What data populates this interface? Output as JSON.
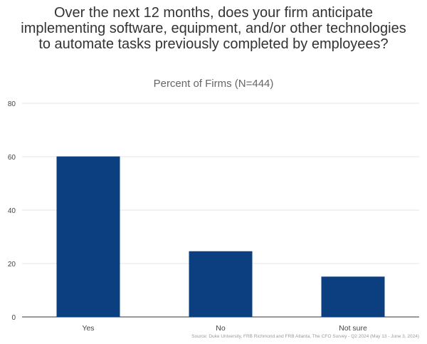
{
  "chart_data": {
    "type": "bar",
    "title": "Over the next 12 months, does your firm anticipate implementing software, equipment, and/or other technologies to automate tasks previously completed by employees?",
    "subtitle": "Percent of Firms (N=444)",
    "categories": [
      "Yes",
      "No",
      "Not sure"
    ],
    "values": [
      60.1,
      24.6,
      15.1
    ],
    "xlabel": "",
    "ylabel": "",
    "ylim": [
      0,
      80
    ],
    "yticks": [
      "0",
      "20",
      "40",
      "60",
      "80"
    ],
    "bar_color": "#0b3f80",
    "grid": true,
    "legend": "none",
    "source": "Source: Duke University, FRB Richmond and FRB Atlanta, The CFO Survey - Q2 2024 (May 13 - June 3, 2024)"
  }
}
